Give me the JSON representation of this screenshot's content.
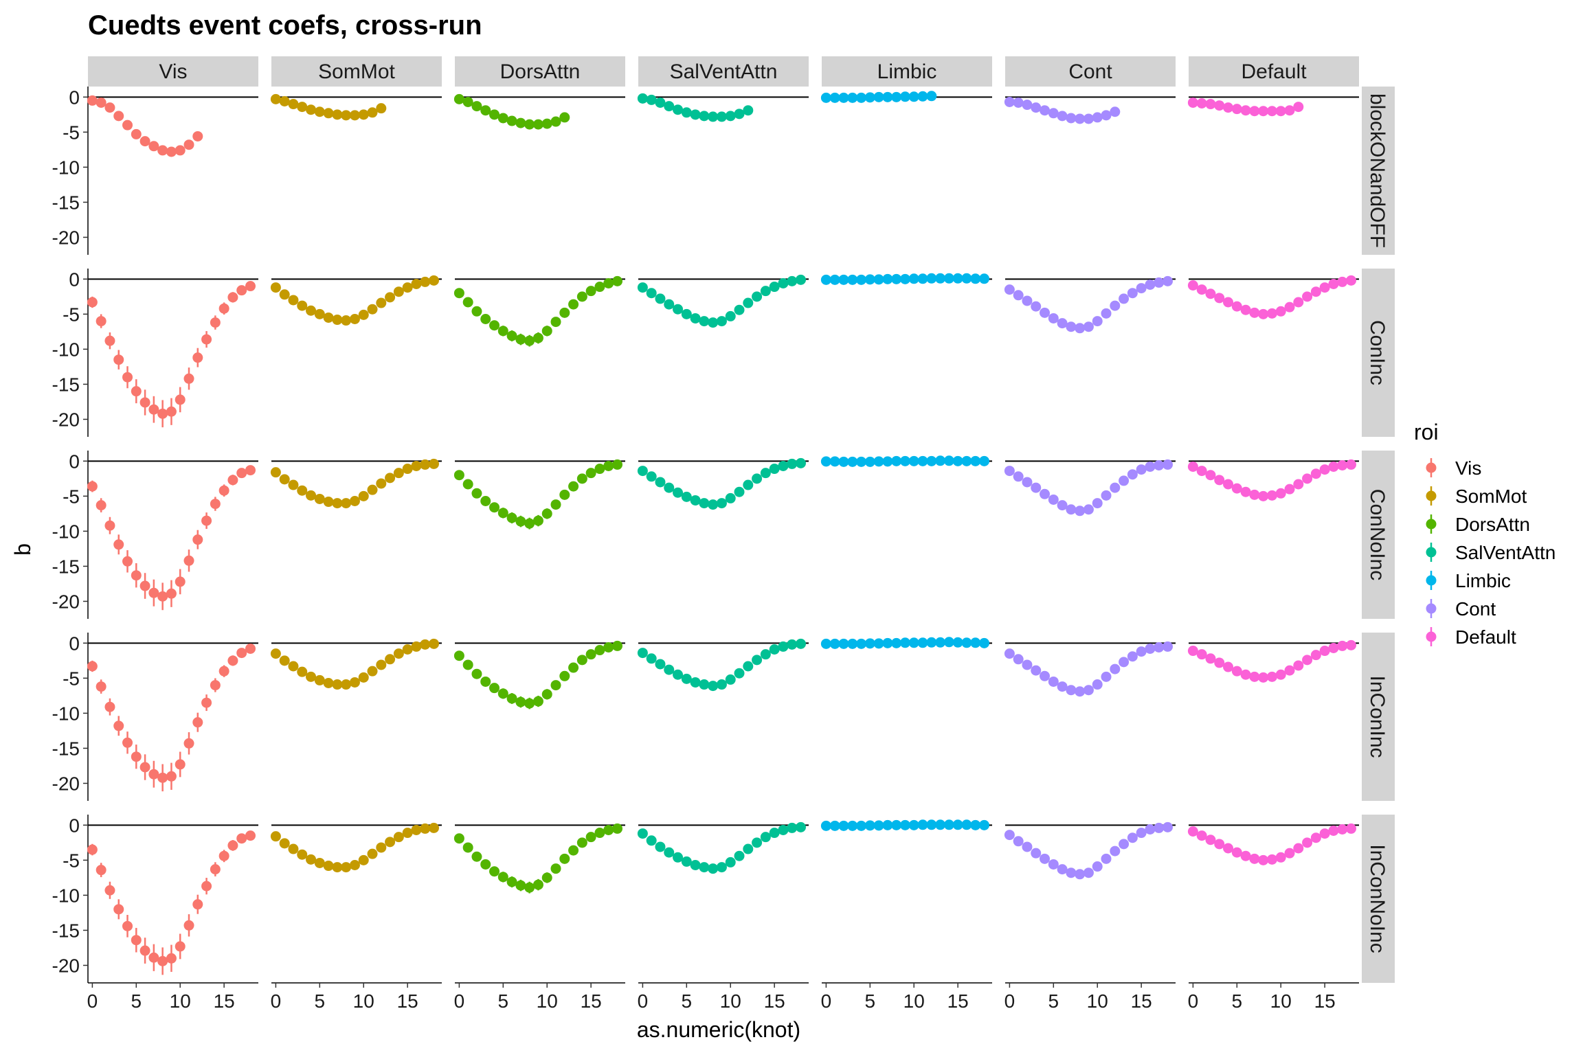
{
  "chart_data": {
    "type": "scatter",
    "title": "Cuedts event coefs, cross-run",
    "xlabel": "as.numeric(knot)",
    "ylabel": "b",
    "xlim": [
      -0.5,
      18.9
    ],
    "ylim": [
      -22.5,
      1.5
    ],
    "x_ticks": [
      0,
      5,
      10,
      15
    ],
    "y_ticks": [
      0,
      -5,
      -10,
      -15,
      -20
    ],
    "hline": 0,
    "legend": {
      "title": "roi",
      "position": "right"
    },
    "columns": [
      "Vis",
      "SomMot",
      "DorsAttn",
      "SalVentAttn",
      "Limbic",
      "Cont",
      "Default"
    ],
    "rows": [
      "blockONandOFF",
      "ConInc",
      "ConNoInc",
      "InConInc",
      "InConNoInc"
    ],
    "colors": {
      "Vis": "#F8766D",
      "SomMot": "#C49A00",
      "DorsAttn": "#53B400",
      "SalVentAttn": "#00C094",
      "Limbic": "#00B6EB",
      "Cont": "#A58AFF",
      "Default": "#FB61D7"
    },
    "error_scale": {
      "blockONandOFF": [
        0.3,
        0.15,
        0.15,
        0.15,
        0.05,
        0.15,
        0.15
      ],
      "ConInc": [
        1.6,
        1.0,
        1.1,
        1.0,
        0.1,
        1.0,
        0.8
      ],
      "ConNoInc": [
        1.6,
        1.0,
        1.1,
        1.0,
        0.1,
        1.0,
        0.8
      ],
      "InConInc": [
        1.6,
        1.0,
        1.1,
        1.0,
        0.1,
        1.0,
        0.8
      ],
      "InConNoInc": [
        1.6,
        1.0,
        1.1,
        1.0,
        0.1,
        1.0,
        0.8
      ]
    },
    "panels": {
      "blockONandOFF": {
        "x": [
          0,
          1,
          2,
          3,
          4,
          5,
          6,
          7,
          8,
          9,
          10,
          11,
          12
        ],
        "series": [
          {
            "values": [
              -0.5,
              -0.8,
              -1.5,
              -2.7,
              -4.0,
              -5.3,
              -6.3,
              -7.0,
              -7.6,
              -7.8,
              -7.6,
              -6.8,
              -5.6
            ]
          },
          {
            "values": [
              -0.3,
              -0.6,
              -1.0,
              -1.4,
              -1.8,
              -2.1,
              -2.3,
              -2.5,
              -2.6,
              -2.6,
              -2.5,
              -2.2,
              -1.6
            ]
          },
          {
            "values": [
              -0.3,
              -0.7,
              -1.3,
              -1.9,
              -2.5,
              -3.0,
              -3.4,
              -3.7,
              -3.9,
              -3.9,
              -3.8,
              -3.5,
              -2.9
            ]
          },
          {
            "values": [
              -0.2,
              -0.4,
              -0.8,
              -1.3,
              -1.8,
              -2.2,
              -2.5,
              -2.7,
              -2.8,
              -2.8,
              -2.7,
              -2.4,
              -1.9
            ]
          },
          {
            "values": [
              -0.1,
              -0.1,
              -0.1,
              -0.1,
              -0.1,
              -0.05,
              0,
              0,
              0,
              0.05,
              0.05,
              0.1,
              0.15
            ]
          },
          {
            "values": [
              -0.7,
              -0.8,
              -1.1,
              -1.5,
              -1.9,
              -2.3,
              -2.7,
              -3.0,
              -3.1,
              -3.1,
              -2.9,
              -2.6,
              -2.1
            ]
          },
          {
            "values": [
              -0.8,
              -0.9,
              -1.0,
              -1.2,
              -1.5,
              -1.7,
              -1.9,
              -2.0,
              -2.0,
              -2.0,
              -2.0,
              -1.9,
              -1.4
            ]
          }
        ]
      },
      "ConInc": {
        "x": [
          0,
          1,
          2,
          3,
          4,
          5,
          6,
          7,
          8,
          9,
          10,
          11,
          12,
          13,
          14,
          15,
          16,
          17,
          18
        ],
        "series": [
          {
            "values": [
              -3.3,
              -6.0,
              -8.8,
              -11.5,
              -14.0,
              -16.0,
              -17.6,
              -18.6,
              -19.2,
              -18.9,
              -17.2,
              -14.2,
              -11.2,
              -8.6,
              -6.2,
              -4.2,
              -2.6,
              -1.6,
              -1.0
            ]
          },
          {
            "values": [
              -1.2,
              -2.2,
              -3.0,
              -3.8,
              -4.5,
              -5.0,
              -5.5,
              -5.8,
              -5.9,
              -5.7,
              -5.1,
              -4.3,
              -3.4,
              -2.6,
              -1.8,
              -1.2,
              -0.7,
              -0.4,
              -0.2
            ]
          },
          {
            "values": [
              -2.0,
              -3.3,
              -4.6,
              -5.7,
              -6.6,
              -7.4,
              -8.1,
              -8.6,
              -8.8,
              -8.4,
              -7.4,
              -6.1,
              -4.8,
              -3.6,
              -2.5,
              -1.7,
              -1.1,
              -0.6,
              -0.3
            ]
          },
          {
            "values": [
              -1.2,
              -2.0,
              -2.8,
              -3.6,
              -4.3,
              -5.0,
              -5.6,
              -6.0,
              -6.2,
              -6.0,
              -5.3,
              -4.4,
              -3.4,
              -2.5,
              -1.7,
              -1.1,
              -0.6,
              -0.3,
              -0.1
            ]
          },
          {
            "values": [
              -0.1,
              -0.1,
              -0.1,
              -0.1,
              -0.1,
              -0.05,
              -0.05,
              0,
              0,
              0,
              0.05,
              0.05,
              0.1,
              0.1,
              0.1,
              0.1,
              0.1,
              0.05,
              0.05
            ]
          },
          {
            "values": [
              -1.5,
              -2.3,
              -3.1,
              -3.9,
              -4.8,
              -5.6,
              -6.3,
              -6.8,
              -7.0,
              -6.8,
              -6.0,
              -4.9,
              -3.8,
              -2.8,
              -2.0,
              -1.3,
              -0.8,
              -0.5,
              -0.3
            ]
          },
          {
            "values": [
              -0.9,
              -1.5,
              -2.1,
              -2.7,
              -3.3,
              -3.9,
              -4.4,
              -4.8,
              -5.0,
              -4.9,
              -4.6,
              -4.0,
              -3.3,
              -2.5,
              -1.8,
              -1.2,
              -0.7,
              -0.4,
              -0.2
            ]
          }
        ]
      },
      "ConNoInc": {
        "x": [
          0,
          1,
          2,
          3,
          4,
          5,
          6,
          7,
          8,
          9,
          10,
          11,
          12,
          13,
          14,
          15,
          16,
          17,
          18
        ],
        "series": [
          {
            "values": [
              -3.6,
              -6.3,
              -9.2,
              -11.9,
              -14.3,
              -16.3,
              -17.8,
              -18.8,
              -19.3,
              -18.9,
              -17.2,
              -14.2,
              -11.2,
              -8.5,
              -6.1,
              -4.2,
              -2.7,
              -1.7,
              -1.3
            ]
          },
          {
            "values": [
              -1.6,
              -2.6,
              -3.4,
              -4.2,
              -4.9,
              -5.4,
              -5.8,
              -6.0,
              -6.0,
              -5.7,
              -5.0,
              -4.1,
              -3.2,
              -2.4,
              -1.7,
              -1.1,
              -0.7,
              -0.5,
              -0.4
            ]
          },
          {
            "values": [
              -2.0,
              -3.3,
              -4.6,
              -5.7,
              -6.6,
              -7.4,
              -8.1,
              -8.6,
              -8.9,
              -8.5,
              -7.5,
              -6.2,
              -4.8,
              -3.6,
              -2.5,
              -1.7,
              -1.1,
              -0.7,
              -0.5
            ]
          },
          {
            "values": [
              -1.4,
              -2.2,
              -3.0,
              -3.8,
              -4.5,
              -5.1,
              -5.6,
              -6.0,
              -6.2,
              -6.0,
              -5.3,
              -4.4,
              -3.4,
              -2.5,
              -1.7,
              -1.1,
              -0.7,
              -0.4,
              -0.3
            ]
          },
          {
            "values": [
              -0.05,
              -0.05,
              -0.1,
              -0.1,
              -0.1,
              -0.1,
              -0.05,
              -0.05,
              0,
              0,
              0,
              0,
              0,
              0.05,
              0.05,
              0,
              0,
              0,
              0
            ]
          },
          {
            "values": [
              -1.4,
              -2.2,
              -3.0,
              -3.8,
              -4.7,
              -5.5,
              -6.3,
              -6.9,
              -7.1,
              -6.9,
              -6.0,
              -4.9,
              -3.8,
              -2.8,
              -1.9,
              -1.2,
              -0.8,
              -0.6,
              -0.5
            ]
          },
          {
            "values": [
              -0.8,
              -1.4,
              -2.0,
              -2.7,
              -3.3,
              -3.9,
              -4.4,
              -4.8,
              -5.0,
              -4.9,
              -4.6,
              -4.0,
              -3.3,
              -2.5,
              -1.8,
              -1.2,
              -0.8,
              -0.6,
              -0.5
            ]
          }
        ]
      },
      "InConInc": {
        "x": [
          0,
          1,
          2,
          3,
          4,
          5,
          6,
          7,
          8,
          9,
          10,
          11,
          12,
          13,
          14,
          15,
          16,
          17,
          18
        ],
        "series": [
          {
            "values": [
              -3.3,
              -6.2,
              -9.1,
              -11.8,
              -14.2,
              -16.2,
              -17.7,
              -18.7,
              -19.2,
              -19.0,
              -17.3,
              -14.3,
              -11.3,
              -8.5,
              -6.0,
              -4.0,
              -2.5,
              -1.4,
              -0.8
            ]
          },
          {
            "values": [
              -1.5,
              -2.5,
              -3.3,
              -4.1,
              -4.8,
              -5.3,
              -5.7,
              -5.9,
              -5.9,
              -5.6,
              -4.9,
              -4.0,
              -3.1,
              -2.3,
              -1.5,
              -0.9,
              -0.5,
              -0.2,
              -0.1
            ]
          },
          {
            "values": [
              -1.8,
              -3.1,
              -4.4,
              -5.5,
              -6.4,
              -7.2,
              -7.9,
              -8.4,
              -8.6,
              -8.3,
              -7.3,
              -6.0,
              -4.7,
              -3.5,
              -2.4,
              -1.6,
              -1.0,
              -0.6,
              -0.4
            ]
          },
          {
            "values": [
              -1.4,
              -2.2,
              -3.0,
              -3.8,
              -4.5,
              -5.1,
              -5.6,
              -5.9,
              -6.1,
              -5.9,
              -5.2,
              -4.3,
              -3.3,
              -2.4,
              -1.6,
              -0.9,
              -0.5,
              -0.2,
              -0.1
            ]
          },
          {
            "values": [
              -0.1,
              -0.1,
              -0.1,
              -0.1,
              -0.1,
              -0.05,
              -0.05,
              0,
              0,
              0.05,
              0.05,
              0.05,
              0.1,
              0.1,
              0.15,
              0.1,
              0.05,
              0.05,
              0
            ]
          },
          {
            "values": [
              -1.5,
              -2.3,
              -3.1,
              -3.9,
              -4.7,
              -5.5,
              -6.2,
              -6.7,
              -6.9,
              -6.7,
              -5.9,
              -4.8,
              -3.7,
              -2.7,
              -1.9,
              -1.2,
              -0.8,
              -0.6,
              -0.5
            ]
          },
          {
            "values": [
              -1.1,
              -1.6,
              -2.2,
              -2.8,
              -3.4,
              -4.0,
              -4.5,
              -4.8,
              -4.9,
              -4.8,
              -4.5,
              -3.9,
              -3.2,
              -2.4,
              -1.7,
              -1.1,
              -0.7,
              -0.4,
              -0.3
            ]
          }
        ]
      },
      "InConNoInc": {
        "x": [
          0,
          1,
          2,
          3,
          4,
          5,
          6,
          7,
          8,
          9,
          10,
          11,
          12,
          13,
          14,
          15,
          16,
          17,
          18
        ],
        "series": [
          {
            "values": [
              -3.5,
              -6.4,
              -9.3,
              -12.0,
              -14.4,
              -16.4,
              -17.9,
              -18.9,
              -19.4,
              -19.0,
              -17.3,
              -14.3,
              -11.3,
              -8.7,
              -6.3,
              -4.4,
              -2.9,
              -1.9,
              -1.5
            ]
          },
          {
            "values": [
              -1.6,
              -2.6,
              -3.4,
              -4.2,
              -4.9,
              -5.4,
              -5.8,
              -6.0,
              -6.0,
              -5.7,
              -5.0,
              -4.1,
              -3.2,
              -2.4,
              -1.7,
              -1.1,
              -0.7,
              -0.5,
              -0.4
            ]
          },
          {
            "values": [
              -1.9,
              -3.2,
              -4.5,
              -5.6,
              -6.6,
              -7.4,
              -8.1,
              -8.6,
              -8.9,
              -8.5,
              -7.5,
              -6.2,
              -4.8,
              -3.6,
              -2.5,
              -1.7,
              -1.1,
              -0.7,
              -0.5
            ]
          },
          {
            "values": [
              -1.2,
              -2.2,
              -3.1,
              -3.9,
              -4.6,
              -5.2,
              -5.7,
              -6.0,
              -6.2,
              -6.0,
              -5.3,
              -4.4,
              -3.4,
              -2.5,
              -1.7,
              -1.1,
              -0.7,
              -0.4,
              -0.3
            ]
          },
          {
            "values": [
              -0.1,
              -0.1,
              -0.1,
              -0.1,
              -0.1,
              -0.05,
              -0.05,
              0,
              0,
              0,
              0,
              0.05,
              0.05,
              0.05,
              0.05,
              0.05,
              0.05,
              0,
              0
            ]
          },
          {
            "values": [
              -1.4,
              -2.3,
              -3.1,
              -4.0,
              -4.8,
              -5.6,
              -6.3,
              -6.8,
              -7.0,
              -6.8,
              -5.9,
              -4.8,
              -3.7,
              -2.7,
              -1.8,
              -1.1,
              -0.6,
              -0.4,
              -0.3
            ]
          },
          {
            "values": [
              -0.9,
              -1.5,
              -2.1,
              -2.7,
              -3.3,
              -3.9,
              -4.4,
              -4.8,
              -5.0,
              -4.9,
              -4.6,
              -4.0,
              -3.3,
              -2.5,
              -1.8,
              -1.2,
              -0.8,
              -0.6,
              -0.5
            ]
          }
        ]
      }
    }
  }
}
